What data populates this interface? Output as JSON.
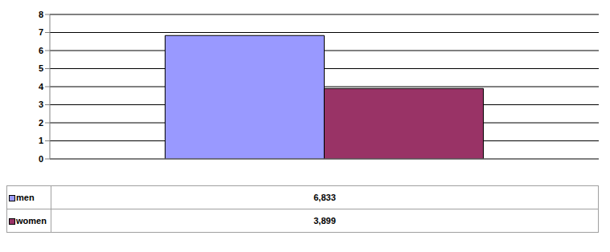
{
  "chart_data": {
    "type": "bar",
    "categories": [
      null
    ],
    "series": [
      {
        "name": "men",
        "color": "#9999ff",
        "values": [
          6.833
        ],
        "value_labels": [
          "6,833"
        ]
      },
      {
        "name": "women",
        "color": "#993366",
        "values": [
          3.899
        ],
        "value_labels": [
          "3,899"
        ]
      }
    ],
    "ylim": [
      0,
      8
    ],
    "yticks": [
      0,
      1,
      2,
      3,
      4,
      5,
      6,
      7,
      8
    ],
    "grid": true,
    "legend": "bottom"
  }
}
